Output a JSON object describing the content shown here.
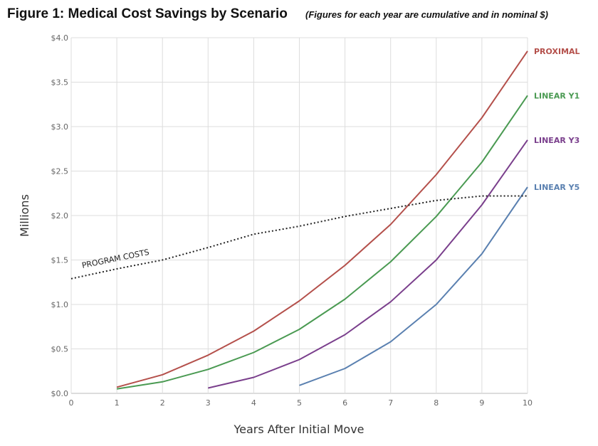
{
  "chart_data": {
    "type": "line",
    "title": "Figure 1: Medical Cost Savings by Scenario",
    "subtitle": "(Figures for each year are cumulative and in nominal $)",
    "xlabel": "Years After Initial Move",
    "ylabel": "Millions",
    "xlim": [
      0,
      10
    ],
    "ylim": [
      0,
      4.0
    ],
    "x_ticks": [
      "0",
      "1",
      "2",
      "3",
      "4",
      "5",
      "6",
      "7",
      "8",
      "9",
      "10"
    ],
    "y_ticks": [
      "$0.0",
      "$0.5",
      "$1.0",
      "$1.5",
      "$2.0",
      "$2.5",
      "$3.0",
      "$3.5",
      "$4.0"
    ],
    "grid": true,
    "series": [
      {
        "name": "PROXIMAL",
        "color": "#b4504b",
        "style": "solid",
        "x": [
          1,
          2,
          3,
          4,
          5,
          6,
          7,
          8,
          9,
          10
        ],
        "values": [
          0.07,
          0.21,
          0.43,
          0.7,
          1.04,
          1.44,
          1.9,
          2.46,
          3.1,
          3.85
        ]
      },
      {
        "name": "LINEAR Y1",
        "color": "#4a9a52",
        "style": "solid",
        "x": [
          1,
          2,
          3,
          4,
          5,
          6,
          7,
          8,
          9,
          10
        ],
        "values": [
          0.05,
          0.13,
          0.27,
          0.46,
          0.72,
          1.06,
          1.48,
          1.99,
          2.6,
          3.35
        ]
      },
      {
        "name": "LINEAR Y3",
        "color": "#7a3f8c",
        "style": "solid",
        "x": [
          3,
          4,
          5,
          6,
          7,
          8,
          9,
          10
        ],
        "values": [
          0.06,
          0.18,
          0.38,
          0.66,
          1.03,
          1.5,
          2.12,
          2.85
        ]
      },
      {
        "name": "LINEAR Y5",
        "color": "#5a80b0",
        "style": "solid",
        "x": [
          5,
          6,
          7,
          8,
          9,
          10
        ],
        "values": [
          0.09,
          0.28,
          0.58,
          1.0,
          1.57,
          2.32
        ]
      },
      {
        "name": "PROGRAM COSTS",
        "color": "#222222",
        "style": "dotted",
        "x": [
          0,
          1,
          2,
          3,
          4,
          5,
          6,
          7,
          8,
          9,
          10
        ],
        "values": [
          1.29,
          1.4,
          1.5,
          1.64,
          1.79,
          1.88,
          1.99,
          2.08,
          2.17,
          2.22,
          2.22
        ]
      }
    ]
  }
}
